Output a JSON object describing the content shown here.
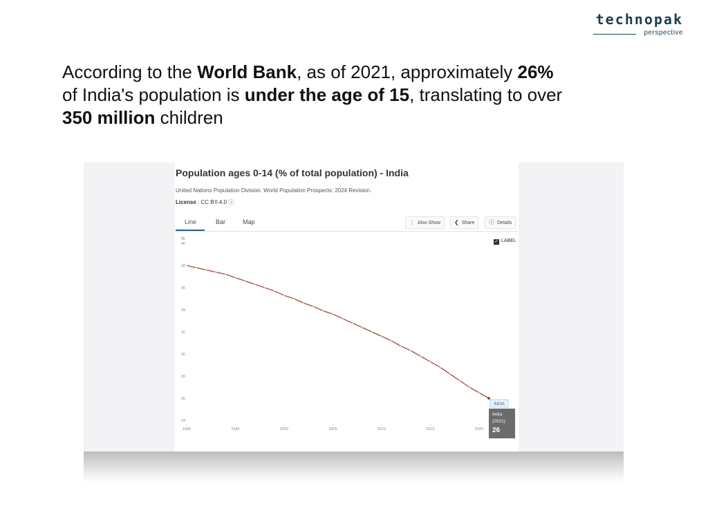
{
  "logo": {
    "name": "technopak",
    "tagline": "perspective"
  },
  "headline": {
    "p1": "According to the ",
    "b1": "World Bank",
    "p2": ", as of 2021, approximately ",
    "b2": "26%",
    "p3": " of India's population is ",
    "b3": "under the age of 15",
    "p4": ", translating to over ",
    "b4": "350 million",
    "p5": " children"
  },
  "panel": {
    "title": "Population ages 0-14 (% of total population) - India",
    "source": "United Nations Population Division. World Population Prospects: 2024 Revision.",
    "license_label": "License",
    "license_value": " : CC BY-4.0",
    "tabs": [
      "Line",
      "Bar",
      "Map"
    ],
    "buttons": {
      "also_show": "Also Show",
      "share": "Share",
      "details": "Details"
    },
    "label_checkbox": "LABEL"
  },
  "colors": {
    "line": "#a0473b",
    "tooltip_bg": "#6b6b6b",
    "accent": "#2a5f8a"
  },
  "chart_data": {
    "type": "line",
    "title": "Population ages 0-14 (% of total population) - India",
    "ylabel": "%",
    "xlabel": "",
    "ylim": [
      24,
      40
    ],
    "xlim": [
      1990,
      2021
    ],
    "y_ticks": [
      24,
      26,
      28,
      30,
      32,
      34,
      36,
      38,
      40
    ],
    "x_ticks": [
      1990,
      1995,
      2000,
      2005,
      2010,
      2015,
      2020
    ],
    "series": [
      {
        "name": "India",
        "x": [
          1990,
          1991,
          1992,
          1993,
          1994,
          1995,
          1996,
          1997,
          1998,
          1999,
          2000,
          2001,
          2002,
          2003,
          2004,
          2005,
          2006,
          2007,
          2008,
          2009,
          2010,
          2011,
          2012,
          2013,
          2014,
          2015,
          2016,
          2017,
          2018,
          2019,
          2020,
          2021
        ],
        "values": [
          38.0,
          37.8,
          37.6,
          37.4,
          37.2,
          36.9,
          36.6,
          36.3,
          36.0,
          35.7,
          35.3,
          35.0,
          34.6,
          34.3,
          33.9,
          33.6,
          33.2,
          32.8,
          32.4,
          32.0,
          31.6,
          31.2,
          30.7,
          30.3,
          29.8,
          29.3,
          28.8,
          28.2,
          27.6,
          27.0,
          26.5,
          26.0
        ]
      }
    ],
    "annotation": {
      "series_label": "INDIA",
      "tooltip_name": "India",
      "tooltip_year": "(2021)",
      "tooltip_value": "26"
    }
  }
}
